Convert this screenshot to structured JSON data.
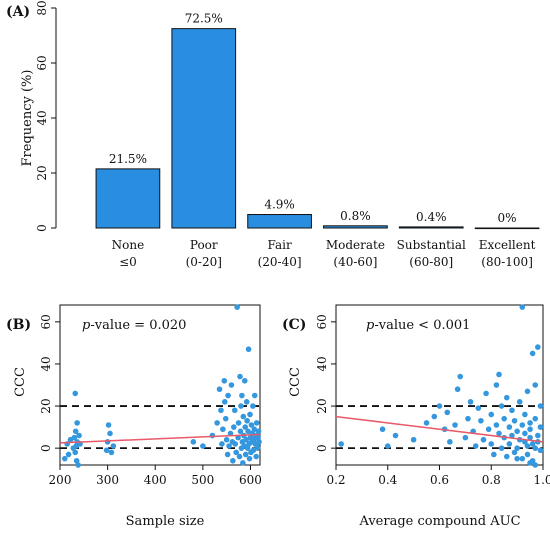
{
  "chart_data": [
    {
      "panel_label": "(A)",
      "type": "bar",
      "ylabel": "Frequency (%)",
      "xlabel": "",
      "ylim": [
        0,
        80
      ],
      "yticks": [
        0,
        20,
        40,
        60,
        80
      ],
      "categories": [
        "None",
        "Poor",
        "Fair",
        "Moderate",
        "Substantial",
        "Excellent"
      ],
      "category_ranges": [
        "≤0",
        "(0-20]",
        "(20-40]",
        "(40-60]",
        "(60-80]",
        "(80-100]"
      ],
      "values": [
        21.5,
        72.5,
        4.9,
        0.8,
        0.4,
        0
      ],
      "data_labels": [
        "21.5%",
        "72.5%",
        "4.9%",
        "0.8%",
        "0.4%",
        "0%"
      ],
      "color": "#2a8ee0",
      "grid": false
    },
    {
      "panel_label": "(B)",
      "type": "scatter",
      "annotation_prefix": "p",
      "annotation_suffix": "-value = 0.020",
      "xlabel": "Sample size",
      "ylabel": "CCC",
      "xlim": [
        200,
        620
      ],
      "ylim": [
        -8,
        68
      ],
      "xticks": [
        200,
        300,
        400,
        500,
        600
      ],
      "yticks": [
        0,
        20,
        40,
        60
      ],
      "reference_lines": [
        0,
        20
      ],
      "trend": {
        "x": [
          200,
          620
        ],
        "y": [
          2.5,
          6.5
        ],
        "color": "#e85a6a"
      },
      "point_color": "#3597dd",
      "points": [
        [
          210,
          -5
        ],
        [
          215,
          2
        ],
        [
          218,
          -3
        ],
        [
          222,
          4
        ],
        [
          228,
          0
        ],
        [
          230,
          5
        ],
        [
          232,
          -2
        ],
        [
          233,
          8
        ],
        [
          234,
          1
        ],
        [
          235,
          -6
        ],
        [
          236,
          3
        ],
        [
          238,
          -8
        ],
        [
          240,
          6
        ],
        [
          232,
          26
        ],
        [
          236,
          12
        ],
        [
          242,
          2
        ],
        [
          298,
          -1
        ],
        [
          300,
          3
        ],
        [
          302,
          11
        ],
        [
          305,
          7
        ],
        [
          308,
          -2
        ],
        [
          312,
          1
        ],
        [
          480,
          3
        ],
        [
          500,
          1
        ],
        [
          520,
          6
        ],
        [
          530,
          12
        ],
        [
          535,
          28
        ],
        [
          538,
          18
        ],
        [
          540,
          2
        ],
        [
          542,
          9
        ],
        [
          545,
          32
        ],
        [
          546,
          22
        ],
        [
          548,
          14
        ],
        [
          550,
          4
        ],
        [
          552,
          -3
        ],
        [
          553,
          25
        ],
        [
          555,
          1
        ],
        [
          558,
          7
        ],
        [
          560,
          30
        ],
        [
          562,
          3
        ],
        [
          563,
          -6
        ],
        [
          565,
          10
        ],
        [
          567,
          18
        ],
        [
          568,
          2
        ],
        [
          570,
          -2
        ],
        [
          572,
          67
        ],
        [
          574,
          5
        ],
        [
          575,
          12
        ],
        [
          577,
          -4
        ],
        [
          578,
          34
        ],
        [
          579,
          8
        ],
        [
          580,
          20
        ],
        [
          581,
          0
        ],
        [
          582,
          25
        ],
        [
          583,
          3
        ],
        [
          584,
          -7
        ],
        [
          585,
          15
        ],
        [
          586,
          6
        ],
        [
          587,
          1
        ],
        [
          588,
          32
        ],
        [
          589,
          10
        ],
        [
          590,
          -3
        ],
        [
          591,
          4
        ],
        [
          592,
          22
        ],
        [
          593,
          13
        ],
        [
          594,
          0
        ],
        [
          595,
          8
        ],
        [
          596,
          47
        ],
        [
          597,
          2
        ],
        [
          598,
          -5
        ],
        [
          599,
          16
        ],
        [
          600,
          5
        ],
        [
          601,
          -2
        ],
        [
          602,
          11
        ],
        [
          603,
          3
        ],
        [
          604,
          7
        ],
        [
          605,
          20
        ],
        [
          606,
          -1
        ],
        [
          607,
          4
        ],
        [
          608,
          9
        ],
        [
          609,
          25
        ],
        [
          610,
          2
        ],
        [
          611,
          6
        ],
        [
          612,
          -4
        ],
        [
          613,
          12
        ],
        [
          614,
          1
        ],
        [
          615,
          0
        ],
        [
          616,
          5
        ],
        [
          617,
          8
        ],
        [
          618,
          3
        ]
      ]
    },
    {
      "panel_label": "(C)",
      "type": "scatter",
      "annotation_prefix": "p",
      "annotation_suffix": "-value < 0.001",
      "xlabel": "Average compound AUC",
      "ylabel": "CCC",
      "xlim": [
        0.2,
        1.0
      ],
      "ylim": [
        -8,
        68
      ],
      "xticks": [
        0.2,
        0.4,
        0.6,
        0.8,
        1.0
      ],
      "xtick_labels": [
        "0.2",
        "0.4",
        "0.6",
        "0.8",
        "1.0"
      ],
      "yticks": [
        0,
        20,
        40,
        60
      ],
      "reference_lines": [
        0,
        20
      ],
      "trend": {
        "x": [
          0.2,
          1.0
        ],
        "y": [
          15,
          3
        ],
        "color": "#e85a6a"
      },
      "point_color": "#3597dd",
      "points": [
        [
          0.22,
          2
        ],
        [
          0.38,
          9
        ],
        [
          0.4,
          1
        ],
        [
          0.43,
          6
        ],
        [
          0.5,
          4
        ],
        [
          0.55,
          12
        ],
        [
          0.58,
          15
        ],
        [
          0.6,
          20
        ],
        [
          0.62,
          9
        ],
        [
          0.63,
          17
        ],
        [
          0.64,
          3
        ],
        [
          0.66,
          11
        ],
        [
          0.67,
          28
        ],
        [
          0.68,
          34
        ],
        [
          0.7,
          5
        ],
        [
          0.71,
          14
        ],
        [
          0.72,
          22
        ],
        [
          0.73,
          8
        ],
        [
          0.74,
          1
        ],
        [
          0.75,
          19
        ],
        [
          0.76,
          13
        ],
        [
          0.77,
          4
        ],
        [
          0.78,
          26
        ],
        [
          0.79,
          9
        ],
        [
          0.8,
          16
        ],
        [
          0.8,
          2
        ],
        [
          0.81,
          -3
        ],
        [
          0.82,
          30
        ],
        [
          0.82,
          11
        ],
        [
          0.83,
          7
        ],
        [
          0.83,
          35
        ],
        [
          0.84,
          20
        ],
        [
          0.84,
          0
        ],
        [
          0.85,
          14
        ],
        [
          0.85,
          5
        ],
        [
          0.86,
          24
        ],
        [
          0.86,
          -4
        ],
        [
          0.87,
          10
        ],
        [
          0.87,
          2
        ],
        [
          0.88,
          18
        ],
        [
          0.88,
          6
        ],
        [
          0.89,
          -2
        ],
        [
          0.89,
          13
        ],
        [
          0.9,
          8
        ],
        [
          0.9,
          0
        ],
        [
          0.91,
          22
        ],
        [
          0.91,
          4
        ],
        [
          0.92,
          67
        ],
        [
          0.92,
          11
        ],
        [
          0.92,
          -5
        ],
        [
          0.93,
          16
        ],
        [
          0.93,
          3
        ],
        [
          0.93,
          7
        ],
        [
          0.94,
          27
        ],
        [
          0.94,
          1
        ],
        [
          0.94,
          -3
        ],
        [
          0.95,
          12
        ],
        [
          0.95,
          5
        ],
        [
          0.95,
          9
        ],
        [
          0.96,
          45
        ],
        [
          0.96,
          2
        ],
        [
          0.96,
          -6
        ],
        [
          0.97,
          30
        ],
        [
          0.97,
          14
        ],
        [
          0.97,
          0
        ],
        [
          0.98,
          48
        ],
        [
          0.98,
          6
        ],
        [
          0.98,
          3
        ],
        [
          0.99,
          10
        ],
        [
          0.99,
          -1
        ],
        [
          0.99,
          20
        ],
        [
          0.97,
          -8
        ],
        [
          0.95,
          -7
        ],
        [
          0.9,
          -5
        ]
      ]
    }
  ]
}
